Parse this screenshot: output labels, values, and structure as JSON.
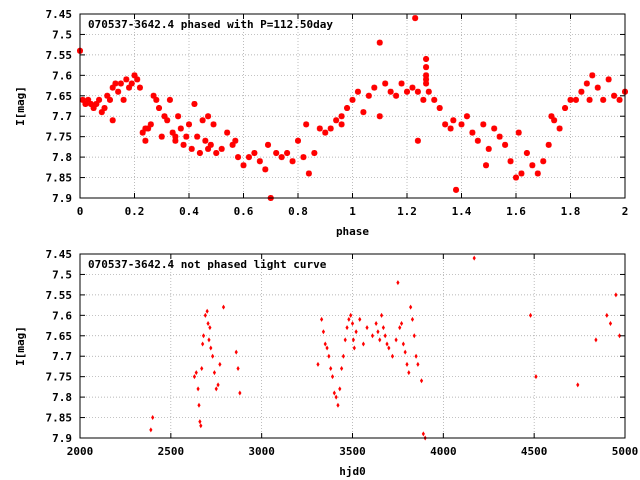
{
  "chart_data": [
    {
      "type": "scatter",
      "title": "070537-3642.4 phased with P=112.50day",
      "xlabel": "phase",
      "ylabel": "I[mag]",
      "xlim": [
        0,
        2
      ],
      "ylim": [
        7.9,
        7.45
      ],
      "y_inverted": true,
      "grid": true,
      "marker_color": "#ff0000",
      "x_ticks": [
        "0",
        "0.2",
        "0.4",
        "0.6",
        "0.8",
        "1",
        "1.2",
        "1.4",
        "1.6",
        "1.8",
        "2"
      ],
      "y_ticks": [
        "7.45",
        "7.5",
        "7.55",
        "7.6",
        "7.65",
        "7.7",
        "7.75",
        "7.8",
        "7.85",
        "7.9"
      ],
      "series": [
        {
          "x": [
            0.0,
            0.01,
            0.02,
            0.03,
            0.04,
            0.05,
            0.06,
            0.07,
            0.08,
            0.09,
            0.1,
            0.11,
            0.12,
            0.13,
            0.14,
            0.15,
            0.16,
            0.17,
            0.18,
            0.19,
            0.2,
            0.21,
            0.22,
            0.23,
            0.24,
            0.25,
            0.26,
            0.27,
            0.28,
            0.29,
            0.3,
            0.31,
            0.32,
            0.33,
            0.34,
            0.35,
            0.36,
            0.37,
            0.38,
            0.39,
            0.4,
            0.41,
            0.42,
            0.43,
            0.44,
            0.45,
            0.46,
            0.47,
            0.48,
            0.49,
            0.5,
            0.52,
            0.54,
            0.56,
            0.58,
            0.6,
            0.62,
            0.64,
            0.66,
            0.68,
            0.7,
            0.72,
            0.74,
            0.76,
            0.78,
            0.8,
            0.82,
            0.84,
            0.86,
            0.88,
            0.9,
            0.92,
            0.94,
            0.96,
            0.98,
            1.0,
            1.02,
            1.04,
            1.06,
            1.08,
            1.1,
            1.12,
            1.14,
            1.16,
            1.18,
            1.2,
            1.22,
            1.23,
            1.24,
            1.26,
            1.27,
            1.27,
            1.27,
            1.27,
            1.27,
            1.28,
            1.3,
            1.32,
            1.34,
            1.36,
            1.38,
            1.4,
            1.42,
            1.44,
            1.46,
            1.48,
            1.5,
            1.52,
            1.54,
            1.56,
            1.58,
            1.6,
            1.62,
            1.64,
            1.66,
            1.68,
            1.7,
            1.72,
            1.74,
            1.76,
            1.78,
            1.8,
            1.82,
            1.84,
            1.86,
            1.88,
            1.9,
            1.92,
            1.94,
            1.96,
            1.98,
            2.0,
            0.12,
            0.24,
            0.35,
            0.47,
            0.57,
            0.69,
            0.83,
            0.96,
            1.1,
            1.24,
            1.37,
            1.49,
            1.61,
            1.73,
            1.87
          ],
          "y": [
            7.54,
            7.66,
            7.67,
            7.66,
            7.67,
            7.68,
            7.67,
            7.66,
            7.69,
            7.68,
            7.65,
            7.66,
            7.63,
            7.62,
            7.64,
            7.62,
            7.66,
            7.61,
            7.63,
            7.62,
            7.6,
            7.61,
            7.63,
            7.74,
            7.76,
            7.73,
            7.72,
            7.65,
            7.66,
            7.68,
            7.75,
            7.7,
            7.71,
            7.66,
            7.74,
            7.76,
            7.7,
            7.73,
            7.77,
            7.75,
            7.72,
            7.78,
            7.67,
            7.75,
            7.79,
            7.71,
            7.76,
            7.78,
            7.77,
            7.72,
            7.79,
            7.78,
            7.74,
            7.77,
            7.8,
            7.82,
            7.8,
            7.79,
            7.81,
            7.83,
            7.9,
            7.79,
            7.8,
            7.79,
            7.81,
            7.76,
            7.8,
            7.84,
            7.79,
            7.73,
            7.74,
            7.73,
            7.71,
            7.7,
            7.68,
            7.66,
            7.64,
            7.69,
            7.65,
            7.63,
            7.52,
            7.62,
            7.64,
            7.65,
            7.62,
            7.64,
            7.63,
            7.46,
            7.64,
            7.66,
            7.56,
            7.58,
            7.6,
            7.61,
            7.62,
            7.64,
            7.66,
            7.68,
            7.72,
            7.73,
            7.88,
            7.72,
            7.7,
            7.74,
            7.76,
            7.72,
            7.78,
            7.73,
            7.75,
            7.77,
            7.81,
            7.85,
            7.84,
            7.79,
            7.82,
            7.84,
            7.81,
            7.77,
            7.71,
            7.73,
            7.68,
            7.66,
            7.66,
            7.64,
            7.62,
            7.6,
            7.63,
            7.66,
            7.61,
            7.65,
            7.66,
            7.64,
            7.71,
            7.73,
            7.75,
            7.7,
            7.76,
            7.77,
            7.72,
            7.72,
            7.7,
            7.76,
            7.71,
            7.82,
            7.74,
            7.7,
            7.66
          ]
        }
      ]
    },
    {
      "type": "scatter",
      "title": "070537-3642.4 not phased light curve",
      "xlabel": "hjd0",
      "ylabel": "I[mag]",
      "xlim": [
        2000,
        5000
      ],
      "ylim": [
        7.9,
        7.45
      ],
      "y_inverted": true,
      "grid": true,
      "marker_color": "#ff0000",
      "x_ticks": [
        "2000",
        "2500",
        "3000",
        "3500",
        "4000",
        "4500",
        "5000"
      ],
      "y_ticks": [
        "7.45",
        "7.5",
        "7.55",
        "7.6",
        "7.65",
        "7.7",
        "7.75",
        "7.8",
        "7.85",
        "7.9"
      ],
      "series": [
        {
          "x": [
            2390,
            2400,
            2630,
            2640,
            2650,
            2655,
            2660,
            2665,
            2670,
            2675,
            2680,
            2690,
            2700,
            2705,
            2710,
            2715,
            2720,
            2730,
            2740,
            2750,
            2760,
            2770,
            2790,
            2860,
            2870,
            2880,
            3310,
            3330,
            3340,
            3350,
            3360,
            3370,
            3380,
            3390,
            3400,
            3410,
            3420,
            3430,
            3440,
            3450,
            3460,
            3470,
            3480,
            3490,
            3500,
            3505,
            3510,
            3520,
            3540,
            3560,
            3580,
            3610,
            3630,
            3640,
            3650,
            3660,
            3670,
            3680,
            3690,
            3700,
            3720,
            3740,
            3750,
            3760,
            3770,
            3780,
            3790,
            3800,
            3810,
            3820,
            3830,
            3840,
            3850,
            3860,
            3880,
            3890,
            3900,
            4170,
            4480,
            4510,
            4740,
            4840,
            4900,
            4920,
            4950,
            4970
          ],
          "y": [
            7.88,
            7.85,
            7.75,
            7.74,
            7.78,
            7.82,
            7.86,
            7.87,
            7.73,
            7.67,
            7.65,
            7.6,
            7.59,
            7.62,
            7.66,
            7.63,
            7.68,
            7.7,
            7.74,
            7.78,
            7.77,
            7.72,
            7.58,
            7.69,
            7.73,
            7.79,
            7.72,
            7.61,
            7.64,
            7.67,
            7.68,
            7.7,
            7.73,
            7.75,
            7.79,
            7.8,
            7.82,
            7.78,
            7.73,
            7.7,
            7.66,
            7.63,
            7.61,
            7.6,
            7.62,
            7.66,
            7.68,
            7.64,
            7.61,
            7.67,
            7.63,
            7.65,
            7.62,
            7.64,
            7.66,
            7.6,
            7.63,
            7.65,
            7.67,
            7.68,
            7.7,
            7.66,
            7.52,
            7.63,
            7.62,
            7.67,
            7.69,
            7.72,
            7.74,
            7.58,
            7.61,
            7.65,
            7.7,
            7.72,
            7.76,
            7.89,
            7.9,
            7.46,
            7.6,
            7.75,
            7.77,
            7.66,
            7.6,
            7.62,
            7.55,
            7.65
          ]
        }
      ]
    }
  ]
}
